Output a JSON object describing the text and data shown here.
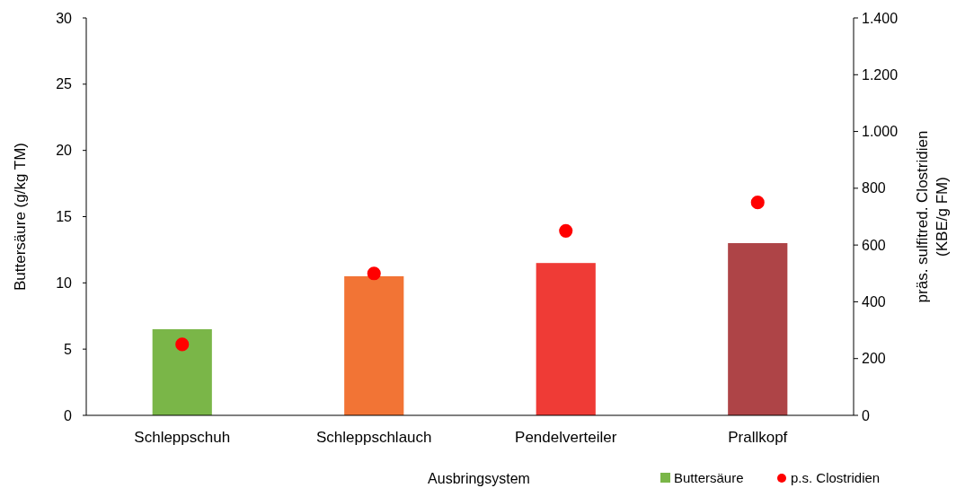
{
  "chart_data": {
    "type": "bar",
    "categories": [
      "Schleppschuh",
      "Schleppschlauch",
      "Pendelverteiler",
      "Prallkopf"
    ],
    "series": [
      {
        "name": "Buttersäure",
        "color": "#7ab648",
        "colors": [
          "#7ab648",
          "#f27435",
          "#ef3b36",
          "#ae4447"
        ],
        "values": [
          6.5,
          10.5,
          11.5,
          13
        ]
      },
      {
        "name": "p.s. Clostridien",
        "type": "scatter",
        "axis": "y2",
        "color": "#ff0000",
        "marker": "circle",
        "values": [
          250,
          500,
          650,
          750
        ]
      }
    ],
    "xlabel": "Ausbringsystem",
    "ylabel": "Buttersäure (g/kg TM)",
    "y2label": "präs. sulfitred. Clostridien\n(KBE/g FM)",
    "ylim": [
      0,
      30
    ],
    "yticks": [
      0,
      5,
      10,
      15,
      20,
      25,
      30
    ],
    "y2lim": [
      0,
      1400
    ],
    "y2ticks": [
      0,
      200,
      400,
      600,
      800,
      {
        "value": 1000,
        "label": "1.000"
      },
      {
        "value": 1200,
        "label": "1.200"
      },
      {
        "value": 1400,
        "label": "1.400"
      }
    ],
    "grid": false,
    "legend": "bottom right"
  }
}
